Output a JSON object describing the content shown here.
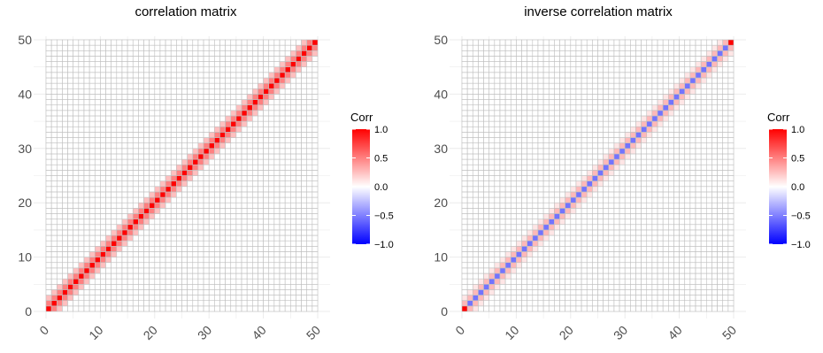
{
  "chart_data": [
    {
      "type": "heatmap",
      "title": "correlation matrix",
      "xlabel": "",
      "ylabel": "",
      "n": 50,
      "xlim": [
        0,
        50
      ],
      "ylim": [
        0,
        50
      ],
      "x_ticks": [
        "0",
        "10",
        "20",
        "30",
        "40",
        "50"
      ],
      "y_ticks": [
        "0",
        "10",
        "20",
        "30",
        "40",
        "50"
      ],
      "grid": true,
      "bands": [
        {
          "offset": 0,
          "value": 1.0
        },
        {
          "offset": 1,
          "value": 0.5
        },
        {
          "offset": 2,
          "value": 0.25
        },
        {
          "offset": 3,
          "value": 0.0
        }
      ],
      "legend": {
        "title": "Corr",
        "position": "right",
        "ticks": [
          "1.0",
          "0.5",
          "0.0",
          "−0.5",
          "−1.0"
        ],
        "range": [
          -1,
          1
        ]
      }
    },
    {
      "type": "heatmap",
      "title": "inverse correlation matrix",
      "xlabel": "",
      "ylabel": "",
      "n": 50,
      "xlim": [
        0,
        50
      ],
      "ylim": [
        0,
        50
      ],
      "x_ticks": [
        "0",
        "10",
        "20",
        "30",
        "40",
        "50"
      ],
      "y_ticks": [
        "0",
        "10",
        "20",
        "30",
        "40",
        "50"
      ],
      "grid": true,
      "corner_value": 1.0,
      "bands": [
        {
          "offset": 0,
          "value": -0.55
        },
        {
          "offset": 1,
          "value": 0.28
        },
        {
          "offset": 2,
          "value": 0.1
        },
        {
          "offset": 3,
          "value": 0.0
        }
      ],
      "legend": {
        "title": "Corr",
        "position": "right",
        "ticks": [
          "1.0",
          "0.5",
          "0.0",
          "−0.5",
          "−1.0"
        ],
        "range": [
          -1,
          1
        ]
      }
    }
  ],
  "colors": {
    "low": "#0000ff",
    "mid": "#ffffff",
    "high": "#ff0000",
    "grid": "#bebebe",
    "panel_grid": "#ebebeb"
  }
}
